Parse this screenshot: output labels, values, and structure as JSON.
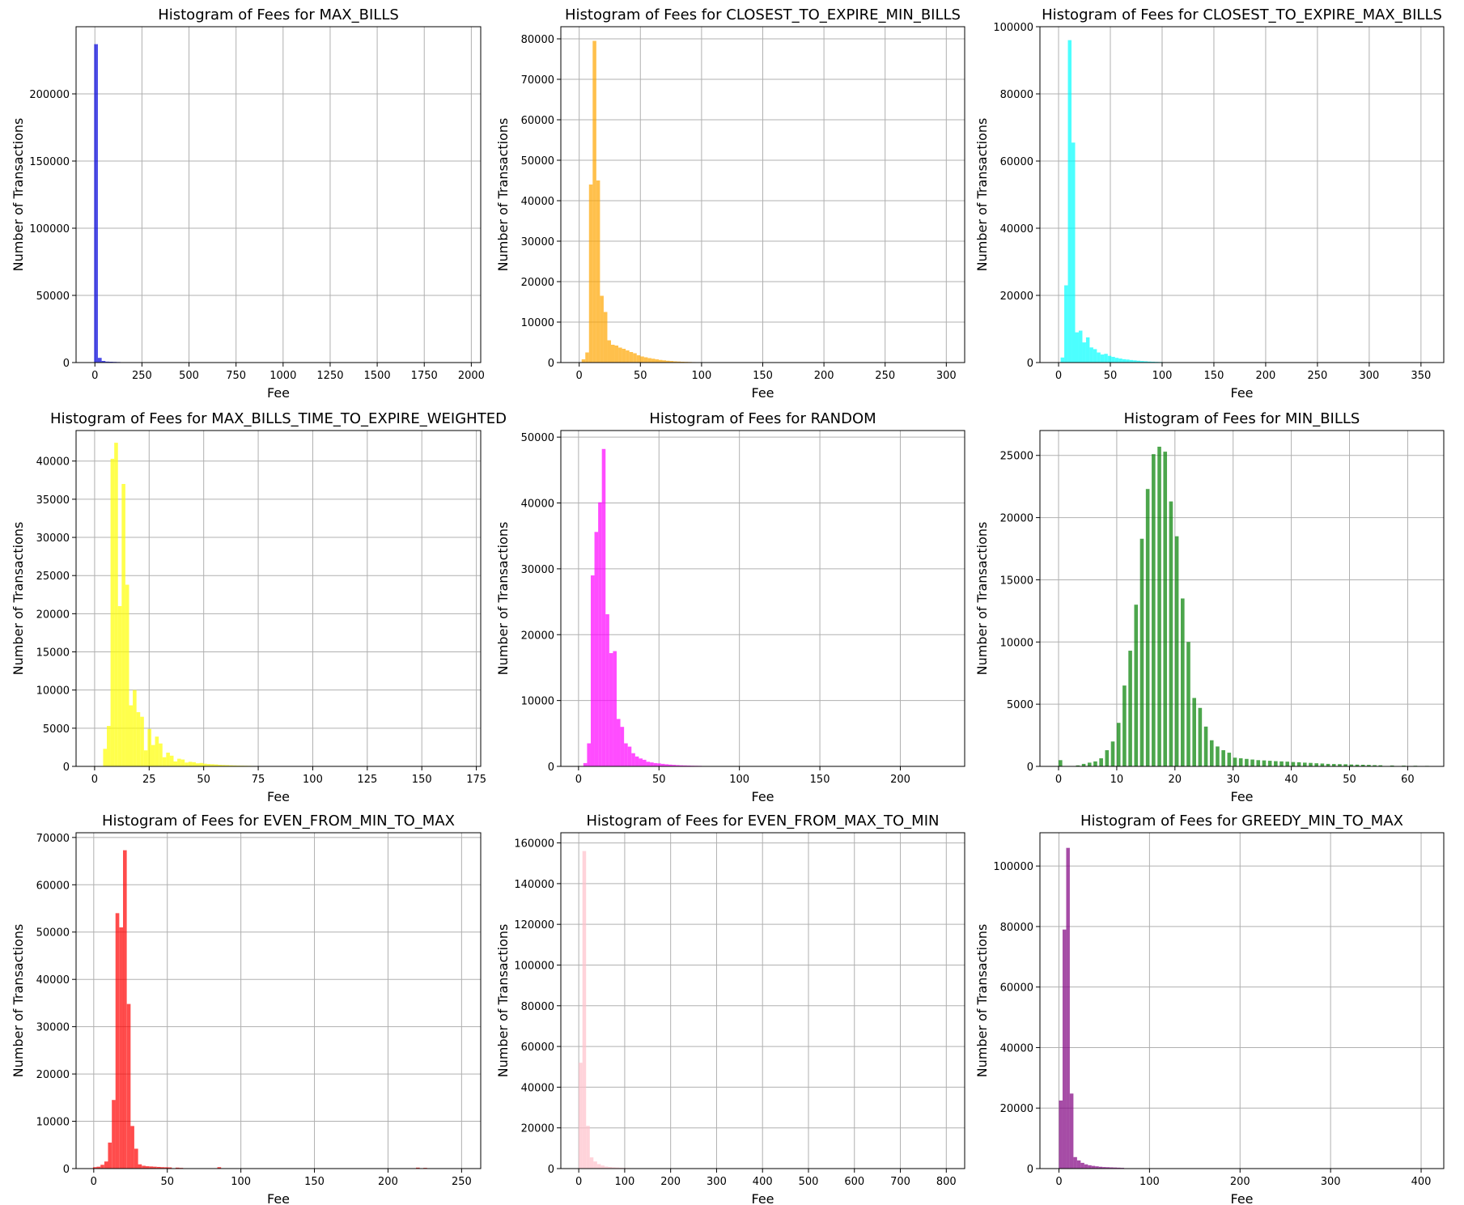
{
  "chart_data": [
    {
      "type": "bar",
      "title": "Histogram of Fees for MAX_BILLS",
      "xlabel": "Fee",
      "ylabel": "Number of Transactions",
      "color": "#0000dd",
      "xlim": [
        -100,
        2050
      ],
      "ylim": [
        0,
        250000
      ],
      "xticks": [
        0,
        250,
        500,
        750,
        1000,
        1250,
        1500,
        1750,
        2000
      ],
      "yticks": [
        0,
        50000,
        100000,
        150000,
        200000
      ],
      "bin_width": 20,
      "bins": [
        [
          -4,
          237000
        ],
        [
          16,
          3500
        ],
        [
          36,
          1200
        ],
        [
          56,
          700
        ],
        [
          76,
          600
        ],
        [
          96,
          500
        ],
        [
          116,
          400
        ]
      ]
    },
    {
      "type": "bar",
      "title": "Histogram of Fees for CLOSEST_TO_EXPIRE_MIN_BILLS",
      "xlabel": "Fee",
      "ylabel": "Number of Transactions",
      "color": "#ffa500",
      "xlim": [
        -15,
        315
      ],
      "ylim": [
        0,
        83000
      ],
      "xticks": [
        0,
        50,
        100,
        150,
        200,
        250,
        300
      ],
      "yticks": [
        0,
        10000,
        20000,
        30000,
        40000,
        50000,
        60000,
        70000,
        80000
      ],
      "bin_width": 3,
      "bins": [
        [
          2,
          800
        ],
        [
          5,
          2500
        ],
        [
          8,
          44000
        ],
        [
          11,
          79500
        ],
        [
          14,
          45000
        ],
        [
          17,
          16500
        ],
        [
          20,
          12500
        ],
        [
          23,
          5500
        ],
        [
          26,
          4400
        ],
        [
          29,
          4200
        ],
        [
          32,
          3700
        ],
        [
          35,
          3400
        ],
        [
          38,
          3000
        ],
        [
          41,
          2600
        ],
        [
          44,
          2300
        ],
        [
          47,
          1800
        ],
        [
          50,
          1500
        ],
        [
          53,
          1300
        ],
        [
          56,
          1100
        ],
        [
          59,
          950
        ],
        [
          62,
          800
        ],
        [
          65,
          650
        ],
        [
          68,
          550
        ],
        [
          71,
          450
        ],
        [
          74,
          380
        ],
        [
          77,
          300
        ],
        [
          80,
          250
        ],
        [
          83,
          200
        ],
        [
          86,
          170
        ],
        [
          89,
          140
        ],
        [
          92,
          110
        ],
        [
          95,
          90
        ],
        [
          98,
          70
        ],
        [
          101,
          50
        ]
      ]
    },
    {
      "type": "bar",
      "title": "Histogram of Fees for CLOSEST_TO_EXPIRE_MAX_BILLS",
      "xlabel": "Fee",
      "ylabel": "Number of Transactions",
      "color": "#00ffff",
      "xlim": [
        -18,
        372
      ],
      "ylim": [
        0,
        100000
      ],
      "xticks": [
        0,
        50,
        100,
        150,
        200,
        250,
        300,
        350
      ],
      "yticks": [
        0,
        20000,
        40000,
        60000,
        80000,
        100000
      ],
      "bin_width": 3.5,
      "bins": [
        [
          2,
          1500
        ],
        [
          5.5,
          23000
        ],
        [
          9,
          96000
        ],
        [
          12.5,
          65500
        ],
        [
          16,
          9000
        ],
        [
          19.5,
          9500
        ],
        [
          23,
          6000
        ],
        [
          26.5,
          7500
        ],
        [
          30,
          4500
        ],
        [
          33.5,
          4000
        ],
        [
          37,
          3000
        ],
        [
          40.5,
          2400
        ],
        [
          44,
          2600
        ],
        [
          47.5,
          2000
        ],
        [
          51,
          1700
        ],
        [
          54.5,
          1400
        ],
        [
          58,
          1200
        ],
        [
          61.5,
          1000
        ],
        [
          65,
          900
        ],
        [
          68.5,
          750
        ],
        [
          72,
          650
        ],
        [
          75.5,
          550
        ],
        [
          79,
          450
        ],
        [
          82.5,
          380
        ],
        [
          86,
          300
        ],
        [
          89.5,
          250
        ],
        [
          93,
          200
        ],
        [
          96.5,
          160
        ],
        [
          100,
          120
        ],
        [
          103.5,
          80
        ]
      ]
    },
    {
      "type": "bar",
      "title": "Histogram of Fees for MAX_BILLS_TIME_TO_EXPIRE_WEIGHTED",
      "xlabel": "Fee",
      "ylabel": "Number of Transactions",
      "color": "#ffff00",
      "xlim": [
        -8.5,
        177
      ],
      "ylim": [
        0,
        44000
      ],
      "xticks": [
        0,
        25,
        50,
        75,
        100,
        125,
        150,
        175
      ],
      "yticks": [
        0,
        5000,
        10000,
        15000,
        20000,
        25000,
        30000,
        35000,
        40000
      ],
      "bin_width": 1.7,
      "bins": [
        [
          3.9,
          2300
        ],
        [
          5.6,
          5300
        ],
        [
          7.3,
          40300
        ],
        [
          9,
          42400
        ],
        [
          10.7,
          21000
        ],
        [
          12.4,
          37000
        ],
        [
          14.1,
          23800
        ],
        [
          15.8,
          8000
        ],
        [
          17.5,
          10000
        ],
        [
          19.2,
          7100
        ],
        [
          20.9,
          6500
        ],
        [
          22.6,
          2100
        ],
        [
          24.3,
          4900
        ],
        [
          26,
          2800
        ],
        [
          27.7,
          3900
        ],
        [
          29.4,
          3000
        ],
        [
          31.1,
          1200
        ],
        [
          32.8,
          1800
        ],
        [
          34.5,
          1400
        ],
        [
          36.2,
          650
        ],
        [
          37.9,
          1000
        ],
        [
          39.6,
          900
        ],
        [
          41.3,
          500
        ],
        [
          43,
          600
        ],
        [
          44.7,
          550
        ],
        [
          46.4,
          400
        ],
        [
          48.1,
          450
        ],
        [
          49.8,
          350
        ],
        [
          51.5,
          300
        ],
        [
          53.2,
          280
        ],
        [
          54.9,
          250
        ],
        [
          56.6,
          200
        ],
        [
          58.3,
          180
        ],
        [
          60,
          160
        ],
        [
          61.7,
          140
        ],
        [
          63.4,
          120
        ],
        [
          65.1,
          100
        ],
        [
          66.8,
          90
        ],
        [
          68.5,
          80
        ],
        [
          70.2,
          70
        ],
        [
          71.9,
          60
        ],
        [
          73.6,
          50
        ],
        [
          75.3,
          45
        ],
        [
          77,
          40
        ],
        [
          78.7,
          30
        ]
      ]
    },
    {
      "type": "bar",
      "title": "Histogram of Fees for RANDOM",
      "xlabel": "Fee",
      "ylabel": "Number of Transactions",
      "color": "#ff00ff",
      "xlim": [
        -11,
        240
      ],
      "ylim": [
        0,
        51000
      ],
      "xticks": [
        0,
        50,
        100,
        150,
        200
      ],
      "yticks": [
        0,
        10000,
        20000,
        30000,
        40000,
        50000
      ],
      "bin_width": 2.3,
      "bins": [
        [
          3,
          500
        ],
        [
          5.3,
          3500
        ],
        [
          7.6,
          29000
        ],
        [
          9.9,
          35600
        ],
        [
          12.2,
          40100
        ],
        [
          14.5,
          48200
        ],
        [
          16.8,
          23100
        ],
        [
          19.1,
          17200
        ],
        [
          21.4,
          17500
        ],
        [
          23.7,
          7200
        ],
        [
          26,
          6000
        ],
        [
          28.3,
          3500
        ],
        [
          30.6,
          3000
        ],
        [
          32.9,
          2000
        ],
        [
          35.2,
          1500
        ],
        [
          37.5,
          1200
        ],
        [
          39.8,
          1000
        ],
        [
          42.1,
          700
        ],
        [
          44.4,
          600
        ],
        [
          46.7,
          500
        ],
        [
          49,
          450
        ],
        [
          51.3,
          380
        ],
        [
          53.6,
          320
        ],
        [
          55.9,
          270
        ],
        [
          58.2,
          230
        ],
        [
          60.5,
          190
        ],
        [
          62.8,
          160
        ],
        [
          65.1,
          140
        ],
        [
          67.4,
          120
        ],
        [
          69.7,
          100
        ],
        [
          72,
          90
        ],
        [
          74.3,
          80
        ]
      ]
    },
    {
      "type": "bar",
      "title": "Histogram of Fees for MIN_BILLS",
      "xlabel": "Fee",
      "ylabel": "Number of Transactions",
      "color": "#008000",
      "xlim": [
        -3.2,
        66.2
      ],
      "ylim": [
        0,
        27000
      ],
      "xticks": [
        0,
        10,
        20,
        30,
        40,
        50,
        60
      ],
      "yticks": [
        0,
        5000,
        10000,
        15000,
        20000,
        25000
      ],
      "bin_width": 0.64,
      "bins": [
        [
          0,
          500
        ],
        [
          3,
          80
        ],
        [
          4,
          200
        ],
        [
          5,
          300
        ],
        [
          6,
          400
        ],
        [
          7,
          650
        ],
        [
          8,
          1300
        ],
        [
          9,
          2000
        ],
        [
          10,
          3500
        ],
        [
          11,
          6500
        ],
        [
          12,
          9300
        ],
        [
          13,
          13000
        ],
        [
          14,
          18300
        ],
        [
          15,
          22300
        ],
        [
          16,
          25100
        ],
        [
          17,
          25700
        ],
        [
          18,
          25300
        ],
        [
          19,
          21300
        ],
        [
          20,
          18500
        ],
        [
          21,
          13500
        ],
        [
          22,
          10000
        ],
        [
          23,
          5500
        ],
        [
          24,
          4700
        ],
        [
          25,
          3200
        ],
        [
          26,
          2100
        ],
        [
          27,
          1600
        ],
        [
          28,
          1300
        ],
        [
          29,
          1100
        ],
        [
          30,
          700
        ],
        [
          31,
          650
        ],
        [
          32,
          600
        ],
        [
          33,
          550
        ],
        [
          34,
          500
        ],
        [
          35,
          480
        ],
        [
          36,
          450
        ],
        [
          37,
          420
        ],
        [
          38,
          400
        ],
        [
          39,
          380
        ],
        [
          40,
          350
        ],
        [
          41,
          330
        ],
        [
          42,
          300
        ],
        [
          43,
          280
        ],
        [
          44,
          250
        ],
        [
          45,
          230
        ],
        [
          46,
          200
        ],
        [
          47,
          190
        ],
        [
          48,
          180
        ],
        [
          49,
          170
        ],
        [
          50,
          150
        ],
        [
          51,
          140
        ],
        [
          52,
          130
        ],
        [
          53,
          120
        ],
        [
          54,
          100
        ],
        [
          55,
          90
        ],
        [
          57,
          70
        ],
        [
          59,
          60
        ],
        [
          61,
          50
        ],
        [
          63,
          40
        ]
      ]
    },
    {
      "type": "bar",
      "title": "Histogram of Fees for EVEN_FROM_MIN_TO_MAX",
      "xlabel": "Fee",
      "ylabel": "Number of Transactions",
      "color": "#ff0000",
      "xlim": [
        -12,
        263
      ],
      "ylim": [
        0,
        71000
      ],
      "xticks": [
        0,
        50,
        100,
        150,
        200,
        250
      ],
      "yticks": [
        0,
        10000,
        20000,
        30000,
        40000,
        50000,
        60000,
        70000
      ],
      "bin_width": 2.55,
      "bins": [
        [
          -0.5,
          300
        ],
        [
          2,
          400
        ],
        [
          4.6,
          800
        ],
        [
          7.2,
          1500
        ],
        [
          9.7,
          5500
        ],
        [
          12.3,
          14500
        ],
        [
          14.8,
          54000
        ],
        [
          17.4,
          51000
        ],
        [
          19.9,
          67300
        ],
        [
          22.5,
          34800
        ],
        [
          25,
          9000
        ],
        [
          27.6,
          4200
        ],
        [
          30.1,
          900
        ],
        [
          32.7,
          600
        ],
        [
          35.2,
          500
        ],
        [
          37.8,
          450
        ],
        [
          40.3,
          400
        ],
        [
          42.9,
          350
        ],
        [
          45.4,
          300
        ],
        [
          48,
          280
        ],
        [
          50.5,
          250
        ],
        [
          55.6,
          200
        ],
        [
          58.2,
          150
        ],
        [
          84,
          300
        ],
        [
          219,
          200
        ],
        [
          224,
          150
        ]
      ]
    },
    {
      "type": "bar",
      "title": "Histogram of Fees for EVEN_FROM_MAX_TO_MIN",
      "xlabel": "Fee",
      "ylabel": "Number of Transactions",
      "color": "#ffc0cb",
      "xlim": [
        -39,
        840
      ],
      "ylim": [
        0,
        165000
      ],
      "xticks": [
        0,
        100,
        200,
        300,
        400,
        500,
        600,
        700,
        800
      ],
      "yticks": [
        0,
        20000,
        40000,
        60000,
        80000,
        100000,
        120000,
        140000,
        160000
      ],
      "bin_width": 8,
      "bins": [
        [
          0,
          52000
        ],
        [
          8,
          156000
        ],
        [
          16,
          21000
        ],
        [
          24,
          5500
        ],
        [
          32,
          3500
        ],
        [
          40,
          2200
        ],
        [
          48,
          1500
        ],
        [
          56,
          1000
        ],
        [
          64,
          800
        ],
        [
          72,
          600
        ],
        [
          80,
          500
        ],
        [
          88,
          400
        ],
        [
          96,
          300
        ],
        [
          104,
          250
        ],
        [
          112,
          200
        ],
        [
          120,
          150
        ]
      ]
    },
    {
      "type": "bar",
      "title": "Histogram of Fees for GREEDY_MIN_TO_MAX",
      "xlabel": "Fee",
      "ylabel": "Number of Transactions",
      "color": "#800080",
      "xlim": [
        -21,
        425
      ],
      "ylim": [
        0,
        111000
      ],
      "xticks": [
        0,
        100,
        200,
        300,
        400
      ],
      "yticks": [
        0,
        20000,
        40000,
        60000,
        80000,
        100000
      ],
      "bin_width": 4,
      "bins": [
        [
          0,
          22500
        ],
        [
          4,
          79000
        ],
        [
          8,
          106000
        ],
        [
          12,
          24800
        ],
        [
          16,
          3800
        ],
        [
          20,
          2700
        ],
        [
          24,
          1900
        ],
        [
          28,
          1400
        ],
        [
          32,
          1100
        ],
        [
          36,
          900
        ],
        [
          40,
          750
        ],
        [
          44,
          600
        ],
        [
          48,
          500
        ],
        [
          52,
          450
        ],
        [
          56,
          400
        ],
        [
          60,
          350
        ],
        [
          64,
          300
        ],
        [
          68,
          250
        ]
      ]
    }
  ]
}
